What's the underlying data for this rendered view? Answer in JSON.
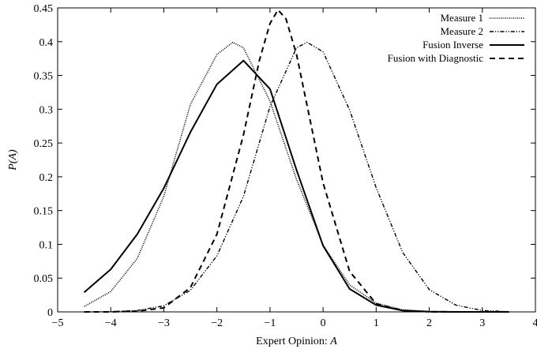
{
  "chart_data": {
    "type": "line",
    "title": "",
    "xlabel": "Expert Opinion: A",
    "xlabel_text": "Expert Opinion: ",
    "xlabel_var": "A",
    "ylabel": "P(A)",
    "xlim": [
      -5,
      4
    ],
    "ylim": [
      0,
      0.45
    ],
    "xticks": [
      -5,
      -4,
      -3,
      -2,
      -1,
      0,
      1,
      2,
      3,
      4
    ],
    "xtick_labels": [
      "−5",
      "−4",
      "−3",
      "−2",
      "−1",
      "0",
      "1",
      "2",
      "3",
      "4"
    ],
    "yticks": [
      0,
      0.05,
      0.1,
      0.15,
      0.2,
      0.25,
      0.3,
      0.35,
      0.4,
      0.45
    ],
    "ytick_labels": [
      "0",
      "0.05",
      "0.1",
      "0.15",
      "0.2",
      "0.25",
      "0.3",
      "0.35",
      "0.4",
      "0.45"
    ],
    "grid": false,
    "legend_position": "top-right",
    "series": [
      {
        "name": "Measure 1",
        "style": "dotted",
        "x": [
          -4.5,
          -4.0,
          -3.5,
          -3.0,
          -2.5,
          -2.0,
          -1.7,
          -1.5,
          -1.0,
          -0.5,
          0.0,
          0.5,
          1.0,
          1.5,
          2.0,
          2.5,
          3.0,
          3.5
        ],
        "y": [
          0.008,
          0.03,
          0.079,
          0.171,
          0.307,
          0.381,
          0.399,
          0.391,
          0.312,
          0.196,
          0.099,
          0.04,
          0.013,
          0.003,
          0.0006,
          0.0001,
          0.0,
          0.0
        ]
      },
      {
        "name": "Measure 2",
        "style": "dash-dot-dot",
        "x": [
          -4.5,
          -4.0,
          -3.5,
          -3.0,
          -2.5,
          -2.0,
          -1.5,
          -1.0,
          -0.5,
          -0.3,
          0.0,
          0.5,
          1.0,
          1.5,
          2.0,
          2.5,
          3.0,
          3.5
        ],
        "y": [
          0.0,
          0.0004,
          0.002,
          0.009,
          0.032,
          0.083,
          0.171,
          0.304,
          0.391,
          0.399,
          0.385,
          0.299,
          0.184,
          0.088,
          0.033,
          0.01,
          0.002,
          0.0003
        ]
      },
      {
        "name": "Fusion Inverse",
        "style": "solid",
        "x": [
          -4.5,
          -4.0,
          -3.5,
          -3.0,
          -2.5,
          -2.0,
          -1.5,
          -1.0,
          -0.5,
          0.0,
          0.5,
          1.0,
          1.5,
          2.0,
          2.5,
          3.0,
          3.5
        ],
        "y": [
          0.029,
          0.063,
          0.115,
          0.183,
          0.266,
          0.337,
          0.372,
          0.33,
          0.21,
          0.098,
          0.034,
          0.01,
          0.002,
          0.0003,
          0.0,
          0.0,
          0.0
        ]
      },
      {
        "name": "Fusion with Diagnostic",
        "style": "dashed",
        "x": [
          -4.5,
          -4.0,
          -3.5,
          -3.0,
          -2.5,
          -2.0,
          -1.5,
          -1.2,
          -1.0,
          -0.85,
          -0.7,
          -0.5,
          0.0,
          0.5,
          1.0,
          1.5,
          2.0,
          2.5,
          3.0,
          3.5
        ],
        "y": [
          0.0,
          0.0,
          0.001,
          0.006,
          0.036,
          0.115,
          0.262,
          0.372,
          0.427,
          0.447,
          0.434,
          0.381,
          0.191,
          0.06,
          0.012,
          0.002,
          0.0002,
          0.0,
          0.0,
          0.0
        ]
      }
    ]
  }
}
